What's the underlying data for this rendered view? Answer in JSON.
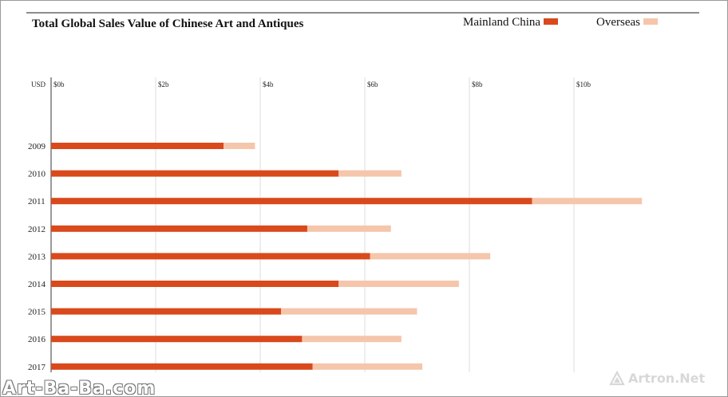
{
  "chart_data": {
    "type": "bar",
    "orientation": "horizontal",
    "stacked": true,
    "title": "Total Global Sales Value of Chinese Art and Antiques",
    "unit_label": "USD",
    "categories": [
      "2009",
      "2010",
      "2011",
      "2012",
      "2013",
      "2014",
      "2015",
      "2016",
      "2017"
    ],
    "series": [
      {
        "name": "Mainland China",
        "color": "#d9491c",
        "values": [
          3.3,
          5.5,
          9.2,
          4.9,
          6.1,
          5.5,
          4.4,
          4.8,
          5.0
        ]
      },
      {
        "name": "Overseas",
        "color": "#f5c6ab",
        "values": [
          0.6,
          1.2,
          2.1,
          1.6,
          2.3,
          2.3,
          2.6,
          1.9,
          2.1
        ]
      }
    ],
    "xlim": [
      0,
      12
    ],
    "xticks": [
      0,
      2,
      4,
      6,
      8,
      10
    ],
    "xtick_labels": [
      "$0b",
      "$2b",
      "$4b",
      "$6b",
      "$8b",
      "$10b"
    ],
    "grid": true,
    "legend_position": "top-right"
  },
  "watermarks": {
    "left": "Art-Ba-Ba.com",
    "right": "Artron.Net"
  }
}
